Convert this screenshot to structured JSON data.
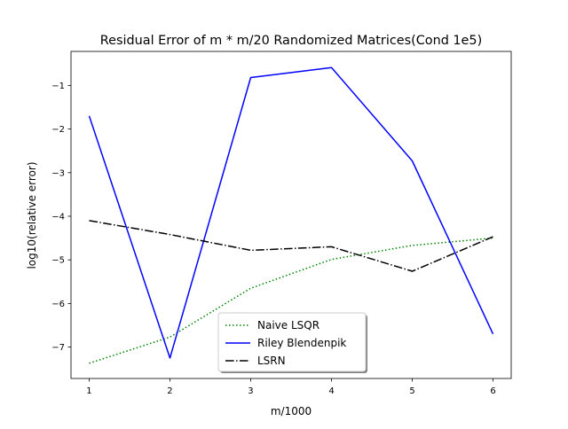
{
  "chart_data": {
    "type": "line",
    "title": "Residual Error of m * m/20 Randomized Matrices(Cond 1e5)",
    "xlabel": "m/1000",
    "ylabel": "log10(relative error)",
    "x": [
      1,
      2,
      3,
      4,
      5,
      6
    ],
    "xlim": [
      0.775,
      6.225
    ],
    "ylim": [
      -7.72,
      -0.22
    ],
    "xticks": [
      1,
      2,
      3,
      4,
      5,
      6
    ],
    "yticks": [
      -1,
      -2,
      -3,
      -4,
      -5,
      -6,
      -7
    ],
    "xtick_labels": [
      "1",
      "2",
      "3",
      "4",
      "5",
      "6"
    ],
    "ytick_labels": [
      "−1",
      "−2",
      "−3",
      "−4",
      "−5",
      "−6",
      "−7"
    ],
    "grid": false,
    "legend_position": "lower center",
    "series": [
      {
        "name": "Naive LSQR",
        "color": "#008000",
        "style": "dotted",
        "values": [
          -7.37,
          -6.77,
          -5.65,
          -4.99,
          -4.67,
          -4.5
        ]
      },
      {
        "name": "Riley Blendenpik",
        "color": "#0000ff",
        "style": "solid",
        "values": [
          -1.7,
          -7.25,
          -0.82,
          -0.59,
          -2.73,
          -6.7
        ]
      },
      {
        "name": "LSRN",
        "color": "#000000",
        "style": "dashdot",
        "values": [
          -4.1,
          -4.42,
          -4.78,
          -4.7,
          -5.26,
          -4.47
        ]
      }
    ]
  }
}
